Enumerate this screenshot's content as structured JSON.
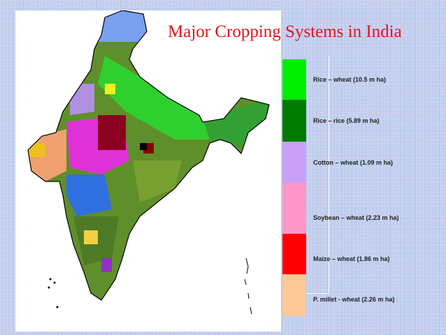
{
  "title": "Major Cropping Systems in India",
  "legend": [
    {
      "label": "Rice – wheat (10.5 m ha)",
      "color": "#00ee00"
    },
    {
      "label": "Rice – rice (5.89 m ha)",
      "color": "#007a00"
    },
    {
      "label": "Cotton – wheat (1.09 m ha)",
      "color": "#c8a0f8"
    },
    {
      "label": "Soybean – wheat (2.23 m ha)",
      "color": "#ff96c8"
    },
    {
      "label": "Maize – wheat (1.86 m ha)",
      "color": "#ff0000"
    },
    {
      "label": "P. millet - wheat (2.26 m ha)",
      "color": "#ffc896"
    }
  ]
}
